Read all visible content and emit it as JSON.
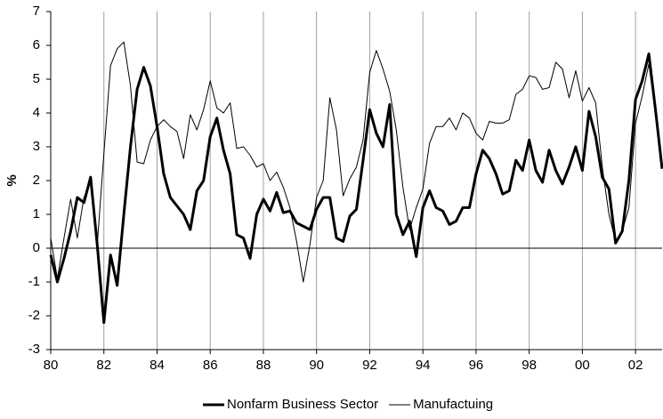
{
  "chart_data": {
    "type": "line",
    "y_label": "%",
    "x": [
      1980,
      1980.25,
      1980.5,
      1980.75,
      1981,
      1981.25,
      1981.5,
      1981.75,
      1982,
      1982.25,
      1982.5,
      1982.75,
      1983,
      1983.25,
      1983.5,
      1983.75,
      1984,
      1984.25,
      1984.5,
      1984.75,
      1985,
      1985.25,
      1985.5,
      1985.75,
      1986,
      1986.25,
      1986.5,
      1986.75,
      1987,
      1987.25,
      1987.5,
      1987.75,
      1988,
      1988.25,
      1988.5,
      1988.75,
      1989,
      1989.25,
      1989.5,
      1989.75,
      1990,
      1990.25,
      1990.5,
      1990.75,
      1991,
      1991.25,
      1991.5,
      1991.75,
      1992,
      1992.25,
      1992.5,
      1992.75,
      1993,
      1993.25,
      1993.5,
      1993.75,
      1994,
      1994.25,
      1994.5,
      1994.75,
      1995,
      1995.25,
      1995.5,
      1995.75,
      1996,
      1996.25,
      1996.5,
      1996.75,
      1997,
      1997.25,
      1997.5,
      1997.75,
      1998,
      1998.25,
      1998.5,
      1998.75,
      1999,
      1999.25,
      1999.5,
      1999.75,
      2000,
      2000.25,
      2000.5,
      2000.75,
      2001,
      2001.25,
      2001.5,
      2001.75,
      2002,
      2002.25,
      2002.5,
      2002.75,
      2003
    ],
    "series": [
      {
        "name": "Nonfarm Business Sector",
        "color": "#000000",
        "width": 3,
        "values": [
          -0.2,
          -1.0,
          -0.3,
          0.5,
          1.5,
          1.35,
          2.1,
          0.1,
          -2.2,
          -0.2,
          -1.1,
          1.0,
          3.0,
          4.7,
          5.35,
          4.8,
          3.6,
          2.2,
          1.5,
          1.25,
          1.0,
          0.55,
          1.7,
          2.0,
          3.3,
          3.85,
          2.9,
          2.2,
          0.4,
          0.3,
          -0.3,
          1.0,
          1.45,
          1.1,
          1.65,
          1.05,
          1.1,
          0.75,
          0.65,
          0.55,
          1.15,
          1.5,
          1.5,
          0.3,
          0.2,
          0.95,
          1.15,
          2.6,
          4.1,
          3.4,
          3.0,
          4.25,
          1.0,
          0.4,
          0.8,
          -0.25,
          1.2,
          1.7,
          1.2,
          1.1,
          0.7,
          0.8,
          1.2,
          1.2,
          2.2,
          2.9,
          2.65,
          2.2,
          1.6,
          1.7,
          2.6,
          2.3,
          3.2,
          2.3,
          1.95,
          2.9,
          2.3,
          1.9,
          2.4,
          3.0,
          2.3,
          4.05,
          3.3,
          2.1,
          1.75,
          0.15,
          0.5,
          2.0,
          4.4,
          4.95,
          5.75,
          4.1,
          2.35
        ]
      },
      {
        "name": "Manufactuing",
        "color": "#000000",
        "width": 1,
        "values": [
          0.3,
          -0.9,
          0.3,
          1.45,
          0.3,
          1.5,
          2.0,
          0.1,
          2.8,
          5.4,
          5.9,
          6.1,
          4.8,
          2.55,
          2.5,
          3.2,
          3.6,
          3.8,
          3.6,
          3.45,
          2.65,
          3.95,
          3.5,
          4.1,
          4.95,
          4.15,
          4.0,
          4.3,
          2.95,
          3.0,
          2.75,
          2.4,
          2.5,
          2.0,
          2.25,
          1.8,
          1.2,
          0.2,
          -1.0,
          0.1,
          1.5,
          2.0,
          4.45,
          3.5,
          1.55,
          2.05,
          2.4,
          3.2,
          5.2,
          5.85,
          5.3,
          4.65,
          3.5,
          1.8,
          0.55,
          1.2,
          1.75,
          3.1,
          3.6,
          3.6,
          3.85,
          3.5,
          4.0,
          3.85,
          3.4,
          3.2,
          3.75,
          3.7,
          3.7,
          3.8,
          4.55,
          4.7,
          5.1,
          5.05,
          4.7,
          4.75,
          5.5,
          5.3,
          4.45,
          5.25,
          4.35,
          4.75,
          4.3,
          2.4,
          1.0,
          0.2,
          0.5,
          1.2,
          3.7,
          4.5,
          5.45,
          4.0,
          2.5
        ]
      }
    ],
    "xlim": [
      1980,
      2003
    ],
    "xticks": [
      {
        "value": 1980,
        "label": "80"
      },
      {
        "value": 1982,
        "label": "82"
      },
      {
        "value": 1984,
        "label": "84"
      },
      {
        "value": 1986,
        "label": "86"
      },
      {
        "value": 1988,
        "label": "88"
      },
      {
        "value": 1990,
        "label": "90"
      },
      {
        "value": 1992,
        "label": "92"
      },
      {
        "value": 1994,
        "label": "94"
      },
      {
        "value": 1996,
        "label": "96"
      },
      {
        "value": 1998,
        "label": "98"
      },
      {
        "value": 2000,
        "label": "00"
      },
      {
        "value": 2002,
        "label": "02"
      }
    ],
    "ylim": [
      -3,
      7
    ],
    "yticks": [
      -3,
      -2,
      -1,
      0,
      1,
      2,
      3,
      4,
      5,
      6,
      7
    ],
    "grid": "x",
    "legend": "bottom"
  }
}
